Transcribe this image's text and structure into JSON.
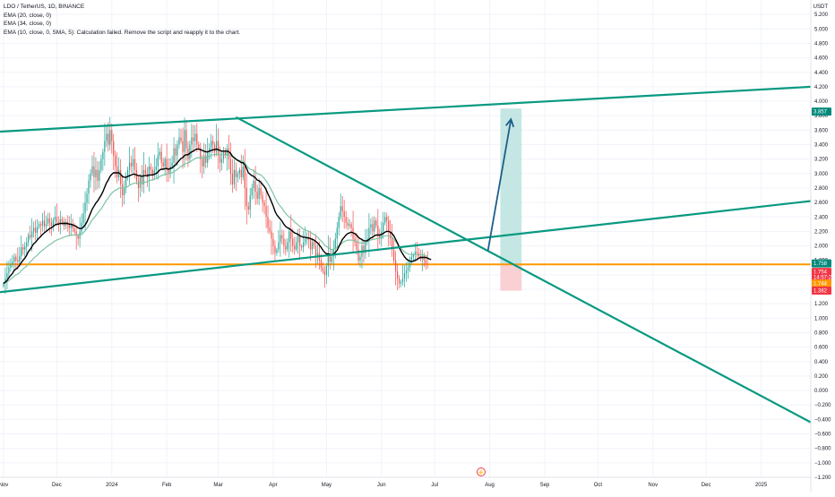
{
  "legend": {
    "symbol_line": "LDO / TetherUS, 1D, BINANCE",
    "ema20": "EMA (20, close, 0)",
    "ema34": "EMA (34, close, 0)",
    "ema10_error": "EMA (10, close, 0, SMA, 5): Calculation failed. Remove the script and reapply it to the chart."
  },
  "currency": "USDT",
  "colors": {
    "up": "#26a69a",
    "down": "#ef5350",
    "trendline": "#089981",
    "horizontal": "#ff9800",
    "ema20": "#000000",
    "ema34": "#7ec4a4",
    "arrow": "#1c5f8a",
    "target_zone": "#b2dfdb",
    "stop_zone": "#f8c8cc",
    "badge_green": "#00897b",
    "badge_red": "#f23645",
    "badge_orange": "#ff9800",
    "badge_dark": "#131722"
  },
  "chart_data": {
    "type": "candlestick",
    "ylim": [
      -1.2,
      5.4
    ],
    "y_ticks": [
      "5.200",
      "5.000",
      "4.800",
      "4.600",
      "4.400",
      "4.200",
      "4.000",
      "3.800",
      "3.600",
      "3.400",
      "3.200",
      "3.000",
      "2.800",
      "2.600",
      "2.400",
      "2.200",
      "2.000",
      "1.800",
      "1.600",
      "1.400",
      "1.200",
      "1.000",
      "0.800",
      "0.600",
      "0.400",
      "0.200",
      "0.000",
      "−0.200",
      "−0.400",
      "−0.600",
      "−0.800",
      "−1.000",
      "−1.200"
    ],
    "x_ticks": [
      "Nov",
      "Dec",
      "2024",
      "Feb",
      "Mar",
      "Apr",
      "May",
      "Jun",
      "Jul",
      "Aug",
      "Sep",
      "Oct",
      "Nov",
      "Dec",
      "2025"
    ],
    "x_tick_values": [
      0,
      30,
      61,
      92,
      121,
      152,
      182,
      213,
      243,
      274,
      305,
      335,
      366,
      396,
      427
    ],
    "price_badges": [
      {
        "label": "3.857",
        "value": 3.857,
        "color_key": "badge_green"
      },
      {
        "label": "1.758",
        "value": 1.758,
        "color_key": "badge_green"
      },
      {
        "label": "1.754",
        "value": 1.64,
        "color_key": "badge_red"
      },
      {
        "label": "14:57:22",
        "value": 1.565,
        "color_key": "badge_red"
      },
      {
        "label": "1.744",
        "value": 1.48,
        "color_key": "badge_orange"
      },
      {
        "label": "1.382",
        "value": 1.382,
        "color_key": "badge_red"
      }
    ],
    "horizontal_level": 1.744,
    "trendlines": [
      {
        "name": "upper-channel",
        "x": [
          -2,
          455
        ],
        "y": [
          3.58,
          4.2
        ]
      },
      {
        "name": "lower-channel",
        "x": [
          -2,
          455
        ],
        "y": [
          1.36,
          2.62
        ]
      },
      {
        "name": "descending",
        "x": [
          131,
          455
        ],
        "y": [
          3.78,
          -0.44
        ]
      }
    ],
    "projection": {
      "from": [
        273,
        1.93
      ],
      "to": [
        286,
        3.75
      ]
    },
    "target_zone": {
      "x": [
        280,
        292
      ],
      "top": 3.9,
      "bottom": 1.744
    },
    "stop_zone": {
      "x": [
        280,
        292
      ],
      "top": 1.744,
      "bottom": 1.38
    },
    "closes": [
      1.48,
      1.55,
      1.62,
      1.7,
      1.74,
      1.78,
      1.85,
      1.8,
      1.78,
      1.86,
      1.98,
      1.95,
      1.99,
      2.05,
      2.15,
      2.12,
      2.2,
      2.25,
      2.18,
      2.26,
      2.3,
      2.28,
      2.35,
      2.27,
      2.3,
      2.38,
      2.32,
      2.28,
      2.36,
      2.4,
      2.33,
      2.3,
      2.37,
      2.34,
      2.28,
      2.33,
      2.29,
      2.25,
      2.3,
      2.24,
      2.2,
      2.14,
      2.1,
      2.2,
      2.32,
      2.45,
      2.6,
      2.72,
      2.9,
      3.0,
      3.1,
      2.95,
      3.05,
      2.9,
      3.05,
      3.2,
      3.3,
      3.45,
      3.55,
      3.4,
      3.6,
      3.45,
      3.25,
      3.1,
      2.95,
      3.05,
      2.85,
      2.7,
      2.8,
      2.95,
      3.05,
      3.15,
      3.1,
      3.2,
      3.05,
      2.9,
      2.8,
      2.95,
      2.85,
      3.05,
      3.0,
      2.95,
      3.1,
      3.05,
      2.98,
      3.05,
      3.1,
      3.25,
      3.3,
      3.15,
      3.1,
      3.2,
      3.05,
      3.0,
      3.1,
      3.15,
      3.35,
      3.25,
      3.4,
      3.5,
      3.45,
      3.3,
      3.6,
      3.35,
      3.2,
      3.4,
      3.5,
      3.45,
      3.55,
      3.4,
      3.35,
      3.2,
      3.1,
      3.25,
      3.15,
      3.3,
      3.35,
      3.45,
      3.4,
      3.3,
      3.45,
      3.25,
      3.15,
      3.2,
      3.3,
      3.25,
      3.35,
      3.2,
      3.0,
      2.85,
      3.05,
      2.95,
      3.0,
      3.05,
      2.95,
      3.1,
      2.8,
      2.55,
      2.5,
      2.7,
      2.8,
      2.9,
      2.75,
      2.65,
      2.8,
      2.7,
      2.6,
      2.55,
      2.4,
      2.25,
      2.2,
      2.1,
      2.0,
      1.9,
      1.95,
      2.05,
      2.15,
      2.1,
      2.0,
      1.95,
      2.05,
      2.2,
      2.1,
      2.0,
      1.95,
      2.05,
      2.15,
      2.0,
      1.98,
      2.05,
      2.1,
      2.12,
      2.08,
      1.95,
      2.05,
      2.0,
      1.85,
      1.9,
      1.8,
      1.7,
      1.65,
      1.6,
      1.72,
      1.9,
      1.78,
      1.85,
      1.95,
      2.1,
      2.25,
      2.4,
      2.55,
      2.48,
      2.4,
      2.32,
      2.28,
      2.3,
      2.25,
      2.1,
      2.05,
      1.95,
      1.8,
      1.85,
      2.0,
      1.9,
      2.05,
      2.1,
      2.25,
      2.3,
      2.2,
      2.35,
      2.28,
      2.15,
      2.1,
      2.2,
      2.32,
      2.4,
      2.35,
      2.2,
      2.1,
      1.95,
      1.8,
      1.65,
      1.55,
      1.48,
      1.5,
      1.55,
      1.62,
      1.66,
      1.7,
      1.78,
      1.85,
      1.88,
      1.92,
      1.9,
      1.86,
      1.82,
      1.86,
      1.8,
      1.76,
      1.754
    ],
    "ema20": [
      1.48,
      1.5,
      1.52,
      1.56,
      1.59,
      1.62,
      1.66,
      1.68,
      1.7,
      1.73,
      1.77,
      1.8,
      1.83,
      1.87,
      1.92,
      1.95,
      1.99,
      2.03,
      2.05,
      2.08,
      2.11,
      2.13,
      2.16,
      2.18,
      2.2,
      2.22,
      2.24,
      2.25,
      2.27,
      2.29,
      2.3,
      2.3,
      2.31,
      2.31,
      2.31,
      2.31,
      2.31,
      2.3,
      2.3,
      2.29,
      2.28,
      2.27,
      2.25,
      2.24,
      2.24,
      2.26,
      2.29,
      2.33,
      2.39,
      2.45,
      2.51,
      2.55,
      2.59,
      2.62,
      2.66,
      2.7,
      2.75,
      2.81,
      2.87,
      2.91,
      2.96,
      2.99,
      3.01,
      3.01,
      3.01,
      3.01,
      2.99,
      2.96,
      2.95,
      2.95,
      2.96,
      2.97,
      2.98,
      2.99,
      2.99,
      2.98,
      2.97,
      2.97,
      2.96,
      2.97,
      2.97,
      2.97,
      2.98,
      2.98,
      2.98,
      2.99,
      3.0,
      3.02,
      3.05,
      3.06,
      3.06,
      3.07,
      3.07,
      3.06,
      3.07,
      3.08,
      3.1,
      3.12,
      3.15,
      3.18,
      3.21,
      3.22,
      3.25,
      3.26,
      3.26,
      3.28,
      3.3,
      3.31,
      3.33,
      3.34,
      3.34,
      3.33,
      3.32,
      3.31,
      3.3,
      3.3,
      3.31,
      3.32,
      3.33,
      3.33,
      3.34,
      3.33,
      3.32,
      3.31,
      3.31,
      3.31,
      3.31,
      3.3,
      3.28,
      3.24,
      3.22,
      3.2,
      3.18,
      3.17,
      3.15,
      3.15,
      3.12,
      3.07,
      3.01,
      2.99,
      2.97,
      2.96,
      2.94,
      2.91,
      2.9,
      2.88,
      2.85,
      2.82,
      2.78,
      2.72,
      2.67,
      2.61,
      2.55,
      2.48,
      2.43,
      2.4,
      2.37,
      2.34,
      2.3,
      2.27,
      2.25,
      2.24,
      2.22,
      2.2,
      2.18,
      2.17,
      2.16,
      2.14,
      2.13,
      2.12,
      2.12,
      2.11,
      2.11,
      2.1,
      2.09,
      2.08,
      2.06,
      2.04,
      2.01,
      1.98,
      1.94,
      1.91,
      1.89,
      1.89,
      1.88,
      1.88,
      1.89,
      1.91,
      1.94,
      1.99,
      2.04,
      2.09,
      2.12,
      2.15,
      2.17,
      2.18,
      2.19,
      2.18,
      2.17,
      2.15,
      2.12,
      2.1,
      2.09,
      2.07,
      2.07,
      2.07,
      2.09,
      2.11,
      2.12,
      2.14,
      2.15,
      2.15,
      2.15,
      2.16,
      2.17,
      2.19,
      2.2,
      2.2,
      2.19,
      2.17,
      2.14,
      2.09,
      2.04,
      1.98,
      1.93,
      1.89,
      1.85,
      1.82,
      1.8,
      1.79,
      1.78,
      1.79,
      1.8,
      1.81,
      1.83,
      1.84,
      1.84,
      1.84,
      1.84,
      1.83,
      1.82,
      1.81
    ],
    "ema34": [
      1.48,
      1.49,
      1.5,
      1.52,
      1.54,
      1.56,
      1.58,
      1.6,
      1.61,
      1.63,
      1.66,
      1.68,
      1.7,
      1.72,
      1.75,
      1.78,
      1.8,
      1.83,
      1.85,
      1.87,
      1.9,
      1.92,
      1.94,
      1.96,
      1.98,
      2.0,
      2.02,
      2.03,
      2.05,
      2.07,
      2.08,
      2.09,
      2.1,
      2.11,
      2.12,
      2.13,
      2.14,
      2.14,
      2.15,
      2.15,
      2.15,
      2.15,
      2.15,
      2.16,
      2.17,
      2.18,
      2.21,
      2.24,
      2.28,
      2.32,
      2.36,
      2.39,
      2.42,
      2.45,
      2.48,
      2.51,
      2.55,
      2.59,
      2.63,
      2.66,
      2.7,
      2.73,
      2.75,
      2.77,
      2.78,
      2.8,
      2.8,
      2.8,
      2.8,
      2.81,
      2.82,
      2.84,
      2.85,
      2.86,
      2.87,
      2.87,
      2.87,
      2.87,
      2.87,
      2.88,
      2.88,
      2.89,
      2.9,
      2.91,
      2.91,
      2.92,
      2.93,
      2.94,
      2.96,
      2.97,
      2.98,
      2.99,
      2.99,
      3.0,
      3.0,
      3.01,
      3.03,
      3.04,
      3.06,
      3.08,
      3.1,
      3.11,
      3.13,
      3.14,
      3.15,
      3.16,
      3.18,
      3.19,
      3.21,
      3.22,
      3.22,
      3.22,
      3.22,
      3.22,
      3.22,
      3.23,
      3.24,
      3.25,
      3.26,
      3.26,
      3.27,
      3.27,
      3.26,
      3.26,
      3.26,
      3.26,
      3.27,
      3.26,
      3.25,
      3.23,
      3.21,
      3.2,
      3.19,
      3.18,
      3.17,
      3.17,
      3.15,
      3.11,
      3.08,
      3.06,
      3.05,
      3.04,
      3.02,
      3.0,
      2.99,
      2.98,
      2.96,
      2.93,
      2.9,
      2.86,
      2.82,
      2.77,
      2.72,
      2.67,
      2.62,
      2.58,
      2.55,
      2.52,
      2.48,
      2.45,
      2.42,
      2.4,
      2.38,
      2.36,
      2.33,
      2.31,
      2.29,
      2.27,
      2.25,
      2.23,
      2.22,
      2.21,
      2.2,
      2.19,
      2.17,
      2.16,
      2.14,
      2.12,
      2.09,
      2.07,
      2.04,
      2.01,
      1.99,
      1.98,
      1.96,
      1.95,
      1.95,
      1.96,
      1.98,
      2.0,
      2.02,
      2.04,
      2.06,
      2.07,
      2.08,
      2.08,
      2.08,
      2.08,
      2.07,
      2.06,
      2.05,
      2.04,
      2.04,
      2.04,
      2.05,
      2.06,
      2.07,
      2.08,
      2.09,
      2.09,
      2.1,
      2.1,
      2.11,
      2.12,
      2.13,
      2.14,
      2.14,
      2.14,
      2.13,
      2.12,
      2.09,
      2.06,
      2.03,
      2.0,
      1.97,
      1.94,
      1.92,
      1.9,
      1.89,
      1.88,
      1.88,
      1.88,
      1.88,
      1.88,
      1.88,
      1.88,
      1.88,
      1.87,
      1.86,
      1.86
    ]
  }
}
